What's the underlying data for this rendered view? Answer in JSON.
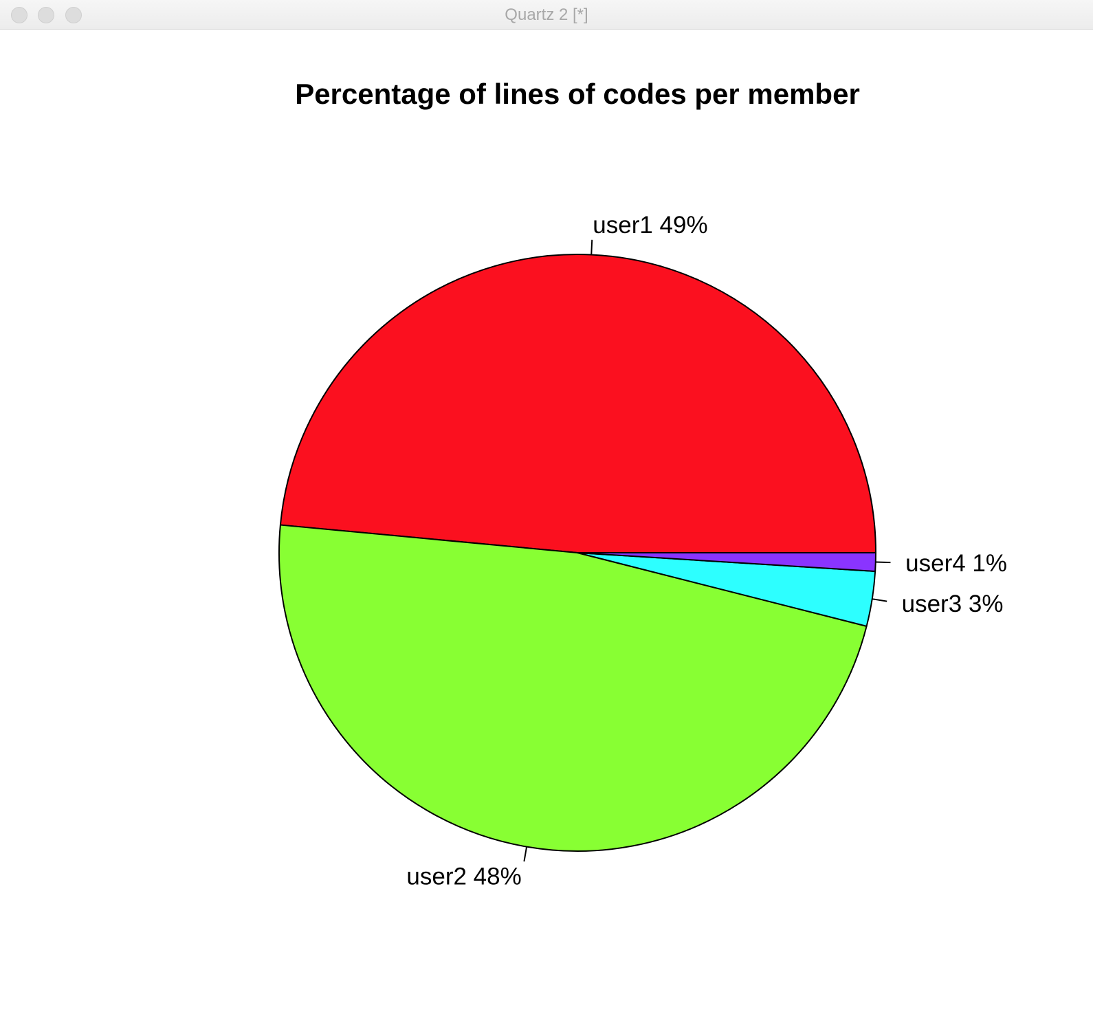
{
  "window": {
    "title": "Quartz 2 [*]"
  },
  "chart_data": {
    "type": "pie",
    "title": "Percentage of lines of codes per member",
    "slices": [
      {
        "category": "user1",
        "value": 49,
        "label": "user1 49%",
        "color": "#fb101f"
      },
      {
        "category": "user2",
        "value": 48,
        "label": "user2 48%",
        "color": "#88ff33"
      },
      {
        "category": "user3",
        "value": 3,
        "label": "user3 3%",
        "color": "#2dffff"
      },
      {
        "category": "user4",
        "value": 1,
        "label": "user4 1%",
        "color": "#8a34ff"
      }
    ],
    "direction": "counterclockwise",
    "start_angle_deg": 0,
    "border_color": "#000000",
    "legend": "none"
  }
}
